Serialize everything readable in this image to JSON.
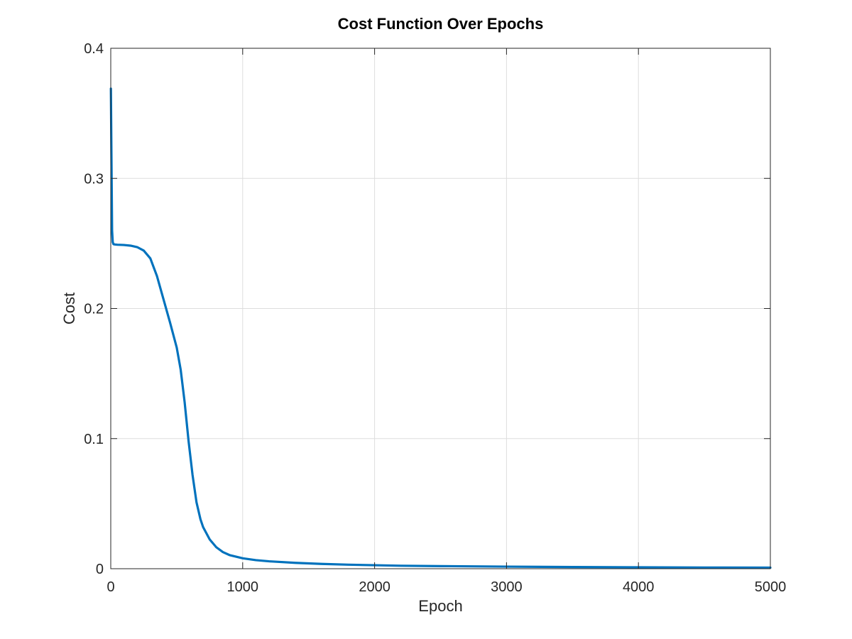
{
  "chart_data": {
    "type": "line",
    "title": "Cost Function Over Epochs",
    "xlabel": "Epoch",
    "ylabel": "Cost",
    "xlim": [
      0,
      5000
    ],
    "ylim": [
      0,
      0.4
    ],
    "x_ticks": [
      0,
      1000,
      2000,
      3000,
      4000,
      5000
    ],
    "x_tick_labels": [
      "0",
      "1000",
      "2000",
      "3000",
      "4000",
      "5000"
    ],
    "y_ticks": [
      0,
      0.1,
      0.2,
      0.3,
      0.4
    ],
    "y_tick_labels": [
      "0",
      "0.1",
      "0.2",
      "0.3",
      "0.4"
    ],
    "grid": true,
    "line_color": "#0072BD",
    "grid_color": "#dddddd",
    "series": [
      {
        "x": [
          1,
          5,
          10,
          15,
          20,
          30,
          50,
          100,
          150,
          200,
          250,
          300,
          350,
          400,
          450,
          500,
          530,
          560,
          590,
          620,
          650,
          680,
          700,
          750,
          800,
          850,
          900,
          1000,
          1100,
          1200,
          1400,
          1600,
          1800,
          2000,
          2200,
          2500,
          3000,
          3500,
          4000,
          4500,
          5000
        ],
        "y": [
          0.369,
          0.32,
          0.26,
          0.251,
          0.2495,
          0.2492,
          0.249,
          0.2488,
          0.2483,
          0.2472,
          0.2445,
          0.2385,
          0.225,
          0.207,
          0.189,
          0.17,
          0.153,
          0.128,
          0.098,
          0.072,
          0.051,
          0.038,
          0.032,
          0.0225,
          0.0165,
          0.0128,
          0.0105,
          0.008,
          0.0066,
          0.0057,
          0.0045,
          0.0037,
          0.0031,
          0.0027,
          0.0023,
          0.002,
          0.0016,
          0.0013,
          0.0011,
          0.0009,
          0.0008
        ]
      }
    ]
  }
}
